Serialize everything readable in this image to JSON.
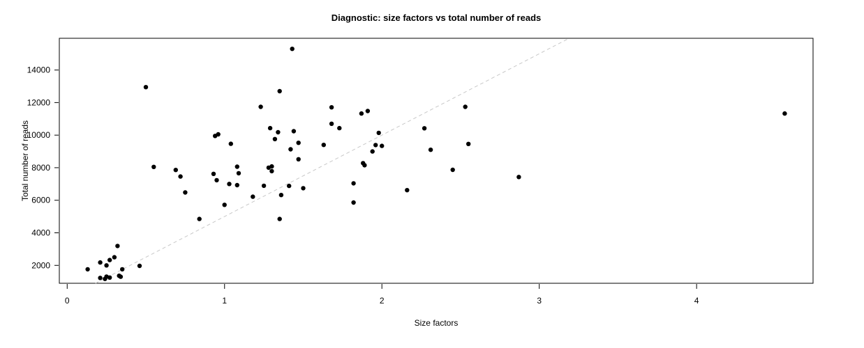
{
  "chart_data": {
    "type": "scatter",
    "title": "Diagnostic: size factors vs total number of reads",
    "xlabel": "Size factors",
    "ylabel": "Total number of reads",
    "x_ticks": [
      0,
      1,
      2,
      3,
      4
    ],
    "y_ticks": [
      2000,
      4000,
      6000,
      8000,
      10000,
      12000,
      14000
    ],
    "xlim": [
      -0.05,
      4.74
    ],
    "ylim": [
      900,
      15950
    ],
    "grid": false,
    "legend": "none",
    "point_color": "#000000",
    "point_radius_px": 3.2,
    "axis_color": "#000000",
    "background_color": "#ffffff",
    "reference_line": {
      "style": "dashed",
      "color": "#c8c8c8",
      "slope": 5000,
      "intercept": 0,
      "description": "identity diagonal: reads = 5000 x size factor"
    },
    "points": [
      [
        0.13,
        1760
      ],
      [
        0.21,
        2180
      ],
      [
        0.21,
        1230
      ],
      [
        0.24,
        1170
      ],
      [
        0.25,
        2000
      ],
      [
        0.25,
        1310
      ],
      [
        0.27,
        2330
      ],
      [
        0.27,
        1250
      ],
      [
        0.3,
        2500
      ],
      [
        0.32,
        3190
      ],
      [
        0.33,
        1360
      ],
      [
        0.34,
        1300
      ],
      [
        0.35,
        1760
      ],
      [
        0.46,
        1970
      ],
      [
        0.5,
        12950
      ],
      [
        0.55,
        8050
      ],
      [
        0.69,
        7860
      ],
      [
        0.72,
        7460
      ],
      [
        0.75,
        6480
      ],
      [
        0.84,
        4850
      ],
      [
        0.93,
        7620
      ],
      [
        0.94,
        9950
      ],
      [
        0.96,
        10050
      ],
      [
        0.95,
        7230
      ],
      [
        1.0,
        5720
      ],
      [
        1.03,
        7000
      ],
      [
        1.04,
        9470
      ],
      [
        1.08,
        8060
      ],
      [
        1.08,
        6930
      ],
      [
        1.09,
        7660
      ],
      [
        1.18,
        6220
      ],
      [
        1.23,
        11740
      ],
      [
        1.25,
        6890
      ],
      [
        1.28,
        8000
      ],
      [
        1.29,
        10430
      ],
      [
        1.3,
        8080
      ],
      [
        1.3,
        7790
      ],
      [
        1.32,
        9760
      ],
      [
        1.34,
        10180
      ],
      [
        1.35,
        12700
      ],
      [
        1.35,
        4850
      ],
      [
        1.36,
        6320
      ],
      [
        1.41,
        6880
      ],
      [
        1.42,
        9130
      ],
      [
        1.43,
        15300
      ],
      [
        1.44,
        10240
      ],
      [
        1.47,
        9530
      ],
      [
        1.47,
        8520
      ],
      [
        1.5,
        6740
      ],
      [
        1.63,
        9400
      ],
      [
        1.68,
        11710
      ],
      [
        1.68,
        10700
      ],
      [
        1.73,
        10430
      ],
      [
        1.82,
        7040
      ],
      [
        1.82,
        5860
      ],
      [
        1.87,
        11330
      ],
      [
        1.88,
        8280
      ],
      [
        1.89,
        8150
      ],
      [
        1.91,
        11480
      ],
      [
        1.94,
        9000
      ],
      [
        1.96,
        9390
      ],
      [
        1.98,
        10140
      ],
      [
        2.0,
        9340
      ],
      [
        2.16,
        6620
      ],
      [
        2.27,
        10420
      ],
      [
        2.31,
        9100
      ],
      [
        2.45,
        7870
      ],
      [
        2.53,
        11740
      ],
      [
        2.55,
        9460
      ],
      [
        2.87,
        7430
      ],
      [
        4.56,
        11330
      ]
    ]
  }
}
